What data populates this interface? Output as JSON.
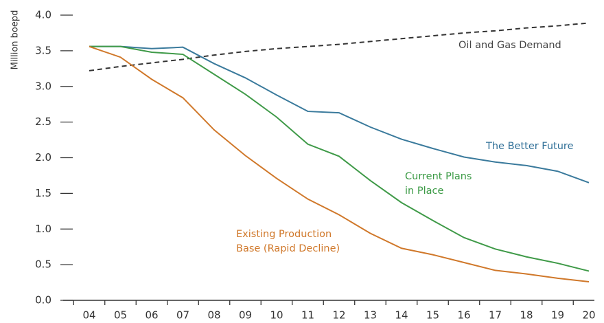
{
  "chart_data": {
    "type": "line",
    "y_label": "Million boepd",
    "categories": [
      "04",
      "05",
      "06",
      "07",
      "08",
      "09",
      "10",
      "11",
      "12",
      "13",
      "14",
      "15",
      "16",
      "17",
      "18",
      "19",
      "20"
    ],
    "series": [
      {
        "name": "Oil and Gas Demand",
        "color": "#333333",
        "label_color": "#444444",
        "dashed": true,
        "values": [
          3.22,
          3.28,
          3.33,
          3.38,
          3.44,
          3.49,
          3.53,
          3.56,
          3.59,
          3.63,
          3.67,
          3.71,
          3.75,
          3.78,
          3.82,
          3.85,
          3.89
        ]
      },
      {
        "name": "The Better Future",
        "color": "#3a7a9c",
        "label_color": "#2f6f97",
        "dashed": false,
        "values": [
          3.56,
          3.56,
          3.53,
          3.55,
          3.32,
          3.12,
          2.88,
          2.65,
          2.63,
          2.43,
          2.26,
          2.13,
          2.01,
          1.94,
          1.89,
          1.81,
          1.65
        ]
      },
      {
        "name": "Current Plans\nin Place",
        "color": "#3f9a48",
        "label_color": "#3b9a45",
        "dashed": false,
        "values": [
          3.56,
          3.56,
          3.48,
          3.45,
          3.17,
          2.89,
          2.57,
          2.19,
          2.02,
          1.68,
          1.37,
          1.12,
          0.88,
          0.72,
          0.61,
          0.52,
          0.41
        ]
      },
      {
        "name": "Existing Production\nBase (Rapid Decline)",
        "color": "#d0782a",
        "label_color": "#d0782a",
        "dashed": false,
        "values": [
          3.56,
          3.41,
          3.1,
          2.84,
          2.39,
          2.03,
          1.71,
          1.42,
          1.2,
          0.94,
          0.73,
          0.64,
          0.53,
          0.42,
          0.37,
          0.31,
          0.26
        ]
      }
    ],
    "ylim": [
      0,
      4
    ],
    "yticks": [
      {
        "value": 0,
        "label": "0.0"
      },
      {
        "value": 0.5,
        "label": "0.5"
      },
      {
        "value": 1,
        "label": "1.0"
      },
      {
        "value": 1.5,
        "label": "1.5"
      },
      {
        "value": 2,
        "label": "2.0"
      },
      {
        "value": 2.5,
        "label": "2.5"
      },
      {
        "value": 3,
        "label": "3.0"
      },
      {
        "value": 3.5,
        "label": "3.5"
      },
      {
        "value": 4,
        "label": "4.0"
      }
    ]
  }
}
